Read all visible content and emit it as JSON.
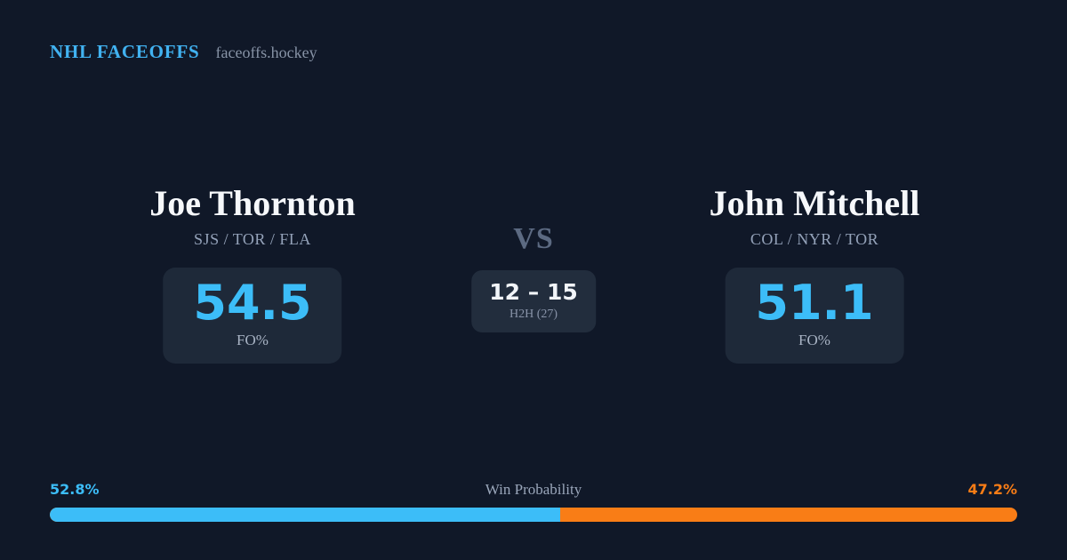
{
  "brand": {
    "title": "NHL FACEOFFS",
    "domain": "faceoffs.hockey"
  },
  "matchup": {
    "vs_label": "VS",
    "player_left": {
      "name": "Joe Thornton",
      "teams": "SJS / TOR / FLA",
      "stat_value": "54.5",
      "stat_label": "FO%"
    },
    "player_right": {
      "name": "John Mitchell",
      "teams": "COL / NYR / TOR",
      "stat_value": "51.1",
      "stat_label": "FO%"
    },
    "h2h": {
      "score": "12 – 15",
      "label": "H2H (27)"
    }
  },
  "win_probability": {
    "title": "Win Probability",
    "left_pct_label": "52.8%",
    "right_pct_label": "47.2%",
    "left_value": 52.8,
    "right_value": 47.2
  },
  "colors": {
    "background": "#101828",
    "card": "#1e2939",
    "card_mid": "#222d3d",
    "blue": "#3cbdf8",
    "orange": "#f97d16",
    "name_white": "#f6f8fb",
    "gray_text": "#94a2b9",
    "vs_gray": "#5c6a82"
  }
}
